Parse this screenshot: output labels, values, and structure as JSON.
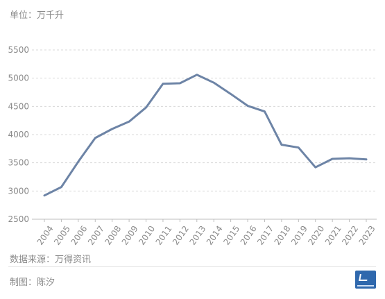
{
  "unit_label": "单位：万千升",
  "source_label": "数据来源：万得资讯",
  "maker_label": "制图：陈汐",
  "logo_icon": "publisher-logo-icon",
  "colors": {
    "line": "#6d84a6",
    "grid": "#d8d8d8",
    "axis": "#bdbdbd",
    "text": "#8a8a8a"
  },
  "chart_data": {
    "type": "line",
    "title": "",
    "xlabel": "",
    "ylabel": "",
    "ylim": [
      2500,
      5500
    ],
    "yticks": [
      2500,
      3000,
      3500,
      4000,
      4500,
      5000,
      5500
    ],
    "grid": true,
    "categories": [
      "2004",
      "2005",
      "2006",
      "2007",
      "2008",
      "2009",
      "2010",
      "2011",
      "2012",
      "2013",
      "2014",
      "2015",
      "2016",
      "2017",
      "2018",
      "2019",
      "2020",
      "2021",
      "2022",
      "2023"
    ],
    "series": [
      {
        "values": [
          2920,
          3070,
          3520,
          3940,
          4100,
          4230,
          4480,
          4900,
          4910,
          5060,
          4920,
          4720,
          4510,
          4410,
          3820,
          3770,
          3420,
          3570,
          3580,
          3560
        ]
      }
    ]
  }
}
